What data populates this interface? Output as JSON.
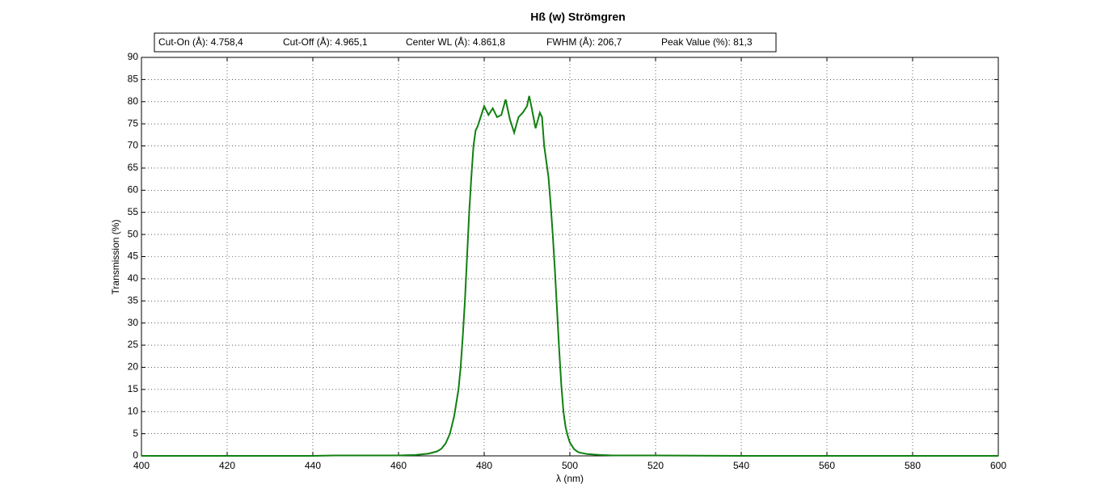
{
  "chart_data": {
    "type": "line",
    "title": "Hß (w) Strömgren",
    "annotations": [
      "Cut-On (Å): 4.758,4",
      "Cut-Off (Å): 4.965,1",
      "Center WL (Å): 4.861,8",
      "FWHM (Å): 206,7",
      "Peak Value (%): 81,3"
    ],
    "xlabel": "λ (nm)",
    "ylabel": "Transmission (%)",
    "x": [
      400,
      440,
      445,
      460,
      464,
      467,
      469,
      470,
      471,
      472,
      473,
      474,
      474.5,
      475,
      475.5,
      476,
      476.5,
      477,
      477.5,
      478,
      478.5,
      479,
      480,
      481,
      482,
      483,
      484,
      485,
      486,
      487,
      488,
      489,
      490,
      490.5,
      491,
      492,
      493,
      493.5,
      494,
      495,
      495.5,
      496,
      496.5,
      497,
      497.5,
      498,
      498.5,
      499,
      499.5,
      500,
      501,
      502,
      504,
      507,
      510,
      520,
      530,
      540,
      600
    ],
    "series": [
      {
        "name": "Transmission",
        "color": "#108010",
        "values": [
          0,
          0,
          0.1,
          0.1,
          0.2,
          0.5,
          1,
          1.6,
          2.8,
          5,
          9,
          15,
          20,
          27,
          35,
          45,
          55,
          63,
          70,
          73.5,
          74.5,
          76,
          79,
          77,
          78.5,
          76.5,
          77,
          80.5,
          76,
          73,
          76.5,
          77.5,
          79,
          81.3,
          79,
          74,
          77.5,
          76.5,
          70,
          63,
          57,
          50,
          42,
          33,
          24,
          16,
          10,
          6.5,
          4.5,
          3,
          1.5,
          0.8,
          0.4,
          0.2,
          0.1,
          0.1,
          0.05,
          0,
          0
        ]
      }
    ],
    "xlim": [
      400,
      600
    ],
    "xticks": [
      400,
      420,
      440,
      460,
      480,
      500,
      520,
      540,
      560,
      580,
      600
    ],
    "ylim": [
      0,
      90
    ],
    "yticks": [
      0,
      5,
      10,
      15,
      20,
      25,
      30,
      35,
      40,
      45,
      50,
      55,
      60,
      65,
      70,
      75,
      80,
      85,
      90
    ],
    "grid": true
  }
}
